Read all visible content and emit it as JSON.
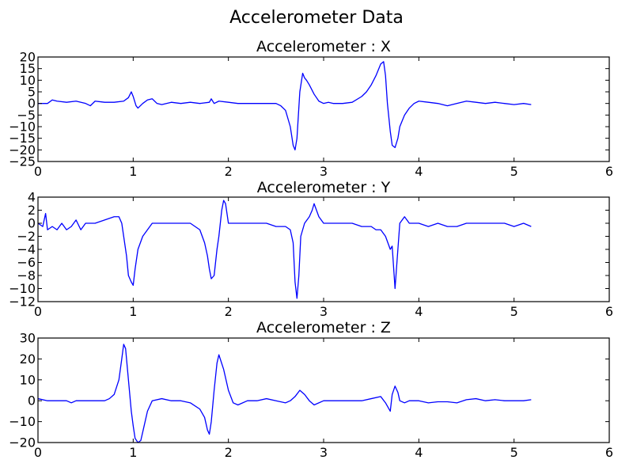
{
  "figure_title": "Accelerometer Data",
  "chart_data": [
    {
      "type": "line",
      "title": "Accelerometer : X",
      "xlim": [
        0,
        6
      ],
      "ylim": [
        -25,
        20
      ],
      "xticks": [
        0,
        1,
        2,
        3,
        4,
        5,
        6
      ],
      "xtick_labels": [
        "0",
        "1",
        "2",
        "3",
        "4",
        "5",
        "6"
      ],
      "yticks": [
        20,
        15,
        10,
        5,
        0,
        -5,
        -10,
        -15,
        -20,
        -25
      ],
      "ytick_labels": [
        "20",
        "15",
        "10",
        "5",
        "0",
        "−5",
        "−10",
        "−15",
        "−20",
        "−25"
      ],
      "grid": false,
      "series": [
        {
          "color": "#0000ff",
          "x": [
            0,
            0.1,
            0.15,
            0.2,
            0.3,
            0.4,
            0.5,
            0.55,
            0.6,
            0.7,
            0.8,
            0.9,
            0.95,
            0.98,
            1.0,
            1.03,
            1.05,
            1.1,
            1.15,
            1.2,
            1.25,
            1.3,
            1.4,
            1.5,
            1.6,
            1.7,
            1.8,
            1.82,
            1.85,
            1.9,
            2.0,
            2.1,
            2.2,
            2.3,
            2.4,
            2.5,
            2.55,
            2.6,
            2.65,
            2.68,
            2.7,
            2.72,
            2.75,
            2.78,
            2.8,
            2.82,
            2.85,
            2.9,
            2.95,
            3.0,
            3.05,
            3.1,
            3.2,
            3.3,
            3.4,
            3.45,
            3.5,
            3.55,
            3.6,
            3.63,
            3.65,
            3.67,
            3.7,
            3.72,
            3.75,
            3.78,
            3.8,
            3.85,
            3.9,
            3.95,
            4.0,
            4.1,
            4.2,
            4.3,
            4.4,
            4.5,
            4.6,
            4.7,
            4.8,
            4.9,
            5.0,
            5.1,
            5.18
          ],
          "y": [
            0,
            0,
            1.5,
            1,
            0.5,
            1,
            0,
            -1,
            1,
            0.5,
            0.5,
            1,
            2.5,
            5,
            3,
            -1,
            -2,
            0,
            1.5,
            2,
            0,
            -0.5,
            0.5,
            0,
            0.5,
            0,
            0.5,
            2,
            0,
            1,
            0.5,
            0,
            0,
            0,
            0,
            0,
            -1,
            -3,
            -10,
            -18,
            -20,
            -15,
            5,
            13,
            11,
            10,
            8,
            4,
            1,
            0,
            0.5,
            0,
            0,
            0.5,
            3,
            5,
            8,
            12,
            17,
            18,
            12,
            0,
            -12,
            -18,
            -19,
            -15,
            -10,
            -5,
            -2,
            0,
            1,
            0.5,
            0,
            -1,
            0,
            1,
            0.5,
            0,
            0.5,
            0,
            -0.5,
            0,
            -0.5
          ]
        }
      ]
    },
    {
      "type": "line",
      "title": "Accelerometer : Y",
      "xlim": [
        0,
        6
      ],
      "ylim": [
        -12,
        4
      ],
      "xticks": [
        0,
        1,
        2,
        3,
        4,
        5,
        6
      ],
      "xtick_labels": [
        "0",
        "1",
        "2",
        "3",
        "4",
        "5",
        "6"
      ],
      "yticks": [
        4,
        2,
        0,
        -2,
        -4,
        -6,
        -8,
        -10,
        -12
      ],
      "ytick_labels": [
        "4",
        "2",
        "0",
        "−2",
        "−4",
        "−6",
        "−8",
        "−10",
        "−12"
      ],
      "grid": false,
      "series": [
        {
          "color": "#0000ff",
          "x": [
            0,
            0.05,
            0.08,
            0.1,
            0.15,
            0.2,
            0.25,
            0.3,
            0.35,
            0.4,
            0.45,
            0.5,
            0.6,
            0.7,
            0.8,
            0.85,
            0.88,
            0.9,
            0.93,
            0.95,
            0.98,
            1.0,
            1.02,
            1.05,
            1.1,
            1.15,
            1.2,
            1.3,
            1.4,
            1.5,
            1.6,
            1.7,
            1.75,
            1.78,
            1.8,
            1.82,
            1.85,
            1.88,
            1.9,
            1.93,
            1.95,
            1.97,
            2.0,
            2.05,
            2.1,
            2.2,
            2.3,
            2.4,
            2.5,
            2.6,
            2.65,
            2.68,
            2.7,
            2.72,
            2.74,
            2.76,
            2.8,
            2.85,
            2.88,
            2.9,
            2.95,
            3.0,
            3.05,
            3.1,
            3.2,
            3.3,
            3.4,
            3.5,
            3.55,
            3.6,
            3.65,
            3.7,
            3.72,
            3.75,
            3.78,
            3.8,
            3.85,
            3.9,
            4.0,
            4.1,
            4.2,
            4.3,
            4.4,
            4.5,
            4.6,
            4.7,
            4.8,
            4.9,
            5.0,
            5.1,
            5.18
          ],
          "y": [
            0,
            -0.5,
            1.5,
            -1,
            -0.5,
            -1,
            0,
            -1,
            -0.5,
            0.5,
            -1,
            0,
            0,
            0.5,
            1,
            1,
            0,
            -2,
            -5,
            -8,
            -9,
            -9.5,
            -7,
            -4,
            -2,
            -1,
            0,
            0,
            0,
            0,
            0,
            -1,
            -3,
            -5,
            -7,
            -8.5,
            -8,
            -4,
            -2,
            2,
            3.5,
            3,
            0,
            0,
            0,
            0,
            0,
            0,
            -0.5,
            -0.5,
            -1,
            -3,
            -9,
            -11.5,
            -8,
            -2,
            0,
            1,
            2,
            3,
            1,
            0,
            0,
            0,
            0,
            0,
            -0.5,
            -0.5,
            -1,
            -1,
            -2,
            -4,
            -3.5,
            -10,
            -4,
            0,
            1,
            0,
            0,
            -0.5,
            0,
            -0.5,
            -0.5,
            0,
            0,
            0,
            0,
            0,
            -0.5,
            0,
            -0.5
          ]
        }
      ]
    },
    {
      "type": "line",
      "title": "Accelerometer : Z",
      "xlim": [
        0,
        6
      ],
      "ylim": [
        -20,
        30
      ],
      "xticks": [
        0,
        1,
        2,
        3,
        4,
        5,
        6
      ],
      "xtick_labels": [
        "0",
        "1",
        "2",
        "3",
        "4",
        "5",
        "6"
      ],
      "yticks": [
        30,
        20,
        10,
        0,
        -10,
        -20
      ],
      "ytick_labels": [
        "30",
        "20",
        "10",
        "0",
        "−10",
        "−20"
      ],
      "grid": false,
      "series": [
        {
          "color": "#0000ff",
          "x": [
            0,
            0.1,
            0.2,
            0.3,
            0.35,
            0.4,
            0.5,
            0.6,
            0.7,
            0.75,
            0.8,
            0.85,
            0.88,
            0.9,
            0.92,
            0.95,
            0.98,
            1.0,
            1.02,
            1.05,
            1.08,
            1.1,
            1.15,
            1.2,
            1.3,
            1.4,
            1.5,
            1.6,
            1.7,
            1.75,
            1.78,
            1.8,
            1.82,
            1.85,
            1.88,
            1.9,
            1.95,
            2.0,
            2.05,
            2.1,
            2.2,
            2.3,
            2.4,
            2.5,
            2.6,
            2.65,
            2.7,
            2.75,
            2.8,
            2.85,
            2.9,
            3.0,
            3.2,
            3.4,
            3.5,
            3.6,
            3.65,
            3.7,
            3.72,
            3.75,
            3.78,
            3.8,
            3.85,
            3.9,
            4.0,
            4.1,
            4.2,
            4.3,
            4.4,
            4.5,
            4.6,
            4.7,
            4.8,
            4.9,
            5.0,
            5.1,
            5.18
          ],
          "y": [
            1,
            0,
            0,
            0,
            -1,
            0,
            0,
            0,
            0,
            1,
            3,
            10,
            20,
            27,
            25,
            10,
            -5,
            -12,
            -18,
            -20,
            -19,
            -15,
            -5,
            0,
            1,
            0,
            0,
            -1,
            -4,
            -8,
            -14,
            -16,
            -10,
            5,
            18,
            22,
            15,
            5,
            -1,
            -2,
            0,
            0,
            1,
            0,
            -1,
            0,
            2,
            5,
            3,
            0,
            -2,
            0,
            0,
            0,
            1,
            2,
            -1,
            -5,
            3,
            7,
            4,
            0,
            -1,
            0,
            0,
            -1,
            -0.5,
            -0.5,
            -1,
            0.5,
            1,
            0,
            0.5,
            0,
            0,
            0,
            0.5
          ]
        }
      ]
    }
  ]
}
